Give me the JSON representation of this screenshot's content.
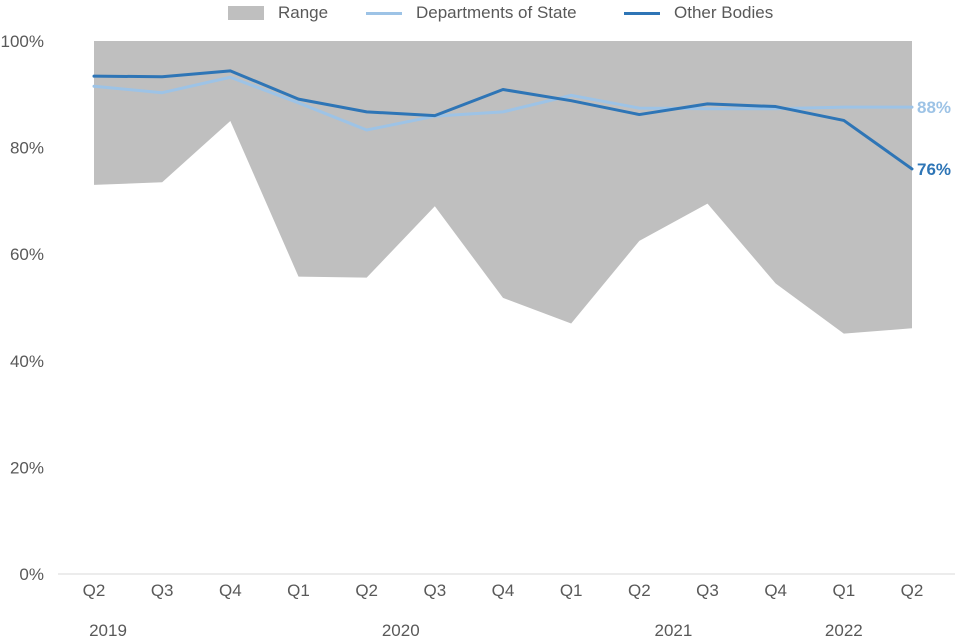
{
  "chart_data": {
    "type": "line",
    "title": "",
    "xlabel": "",
    "ylabel": "",
    "ylim": [
      0,
      100
    ],
    "y_ticks": [
      "0%",
      "20%",
      "40%",
      "60%",
      "80%",
      "100%"
    ],
    "y_tick_values": [
      0,
      20,
      40,
      60,
      80,
      100
    ],
    "categories": [
      "Q2",
      "Q3",
      "Q4",
      "Q1",
      "Q2",
      "Q3",
      "Q4",
      "Q1",
      "Q2",
      "Q3",
      "Q4",
      "Q1",
      "Q2"
    ],
    "years": [
      {
        "label": "2019",
        "start": 0,
        "end": 0
      },
      {
        "label": "2020",
        "start": 3,
        "end": 6
      },
      {
        "label": "2021",
        "start": 7,
        "end": 10
      },
      {
        "label": "2022",
        "start": 11,
        "end": 11
      }
    ],
    "range": {
      "name": "Range",
      "color": "#bfbfbf",
      "upper": [
        100,
        100,
        100,
        100,
        100,
        100,
        100,
        100,
        100,
        100,
        100,
        100,
        100
      ],
      "lower": [
        73,
        73.5,
        85,
        55.8,
        55.6,
        69,
        51.8,
        47,
        62.5,
        69.5,
        54.5,
        45.1,
        46.1
      ]
    },
    "series": [
      {
        "name": "Departments of State",
        "color": "#9dc3e6",
        "values": [
          91.5,
          90.3,
          93.2,
          88.4,
          83.3,
          85.9,
          86.7,
          89.8,
          87.4,
          87.3,
          87.3,
          87.6,
          87.6
        ],
        "end_label": "88%"
      },
      {
        "name": "Other Bodies",
        "color": "#2e75b6",
        "values": [
          93.4,
          93.3,
          94.4,
          89.1,
          86.7,
          86.0,
          90.9,
          88.8,
          86.2,
          88.2,
          87.7,
          85.1,
          76.0
        ],
        "end_label": "76%"
      }
    ],
    "legend": [
      "Range",
      "Departments of State",
      "Other Bodies"
    ],
    "legend_position": "top"
  }
}
